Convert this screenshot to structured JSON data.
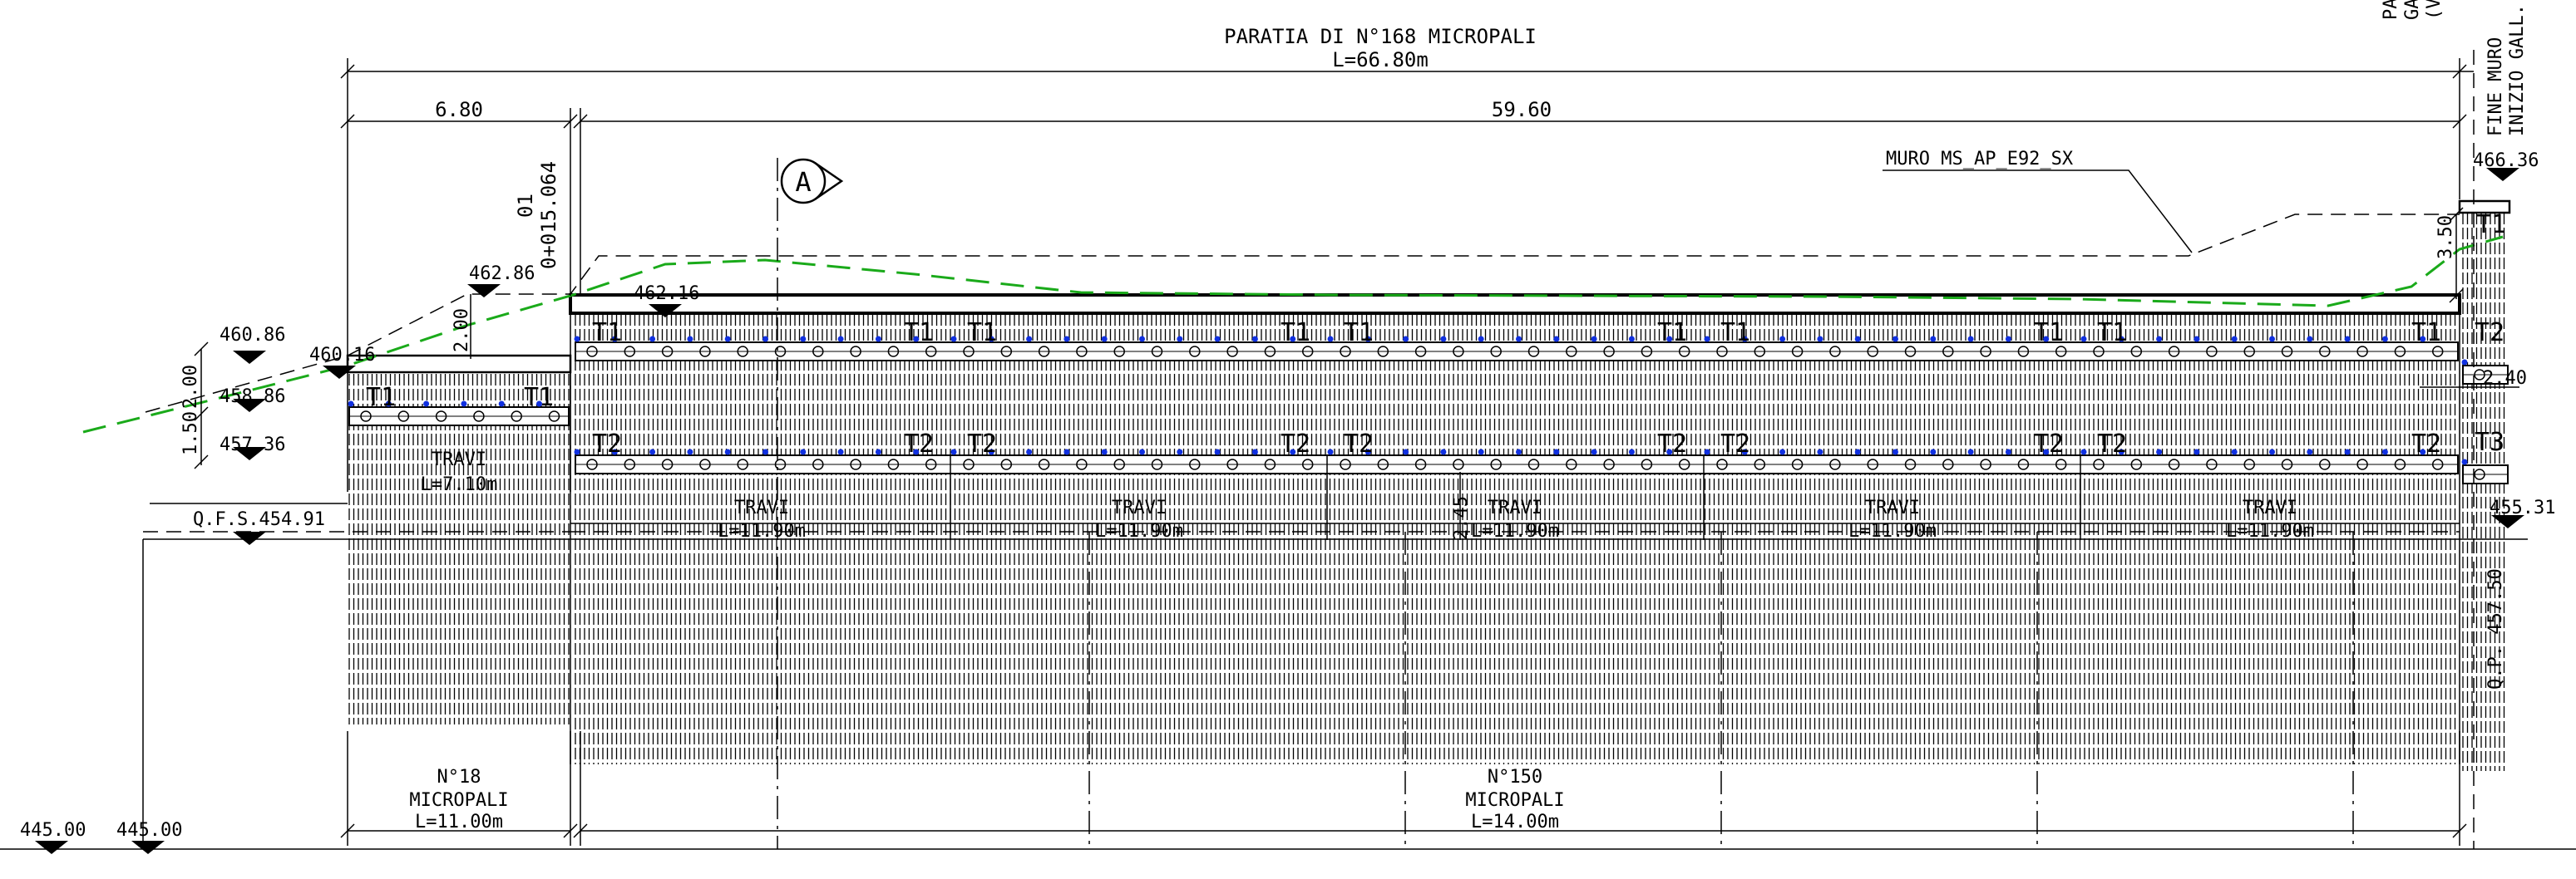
{
  "colors": {
    "ink": "#000000",
    "terrain_green": "#1aaa1a",
    "pile_blue": "#1030e0",
    "background": "#ffffff"
  },
  "title": {
    "line1": "PARATIA DI N°168 MICROPALI",
    "line2": "L=66.80m"
  },
  "right_labels": {
    "fine_muro": "FINE MURO",
    "inizio_gall": "INIZIO GALL.",
    "truncated_pa": "PA",
    "truncated_ga": "GA",
    "truncated_v": "(V"
  },
  "dimensions": {
    "left_span": "6.80",
    "main_span": "59.60",
    "h_2_00": "2.00",
    "h_1_50": "1.50",
    "h_2_00_left": "2.00",
    "h_3_50": "3.50",
    "h_2_40": "2.40",
    "h_2_45": "2.45"
  },
  "station": {
    "number": "01",
    "chainage": "0+015.064"
  },
  "section_marker": "A",
  "muro_label": "MURO MS_AP_E92_SX",
  "elevations": {
    "e_466_36": "466.36",
    "e_462_86": "462.86",
    "e_462_16": "462.16",
    "e_460_86": "460.86",
    "e_460_16": "460.16",
    "e_458_86": "458.86",
    "e_457_36": "457.36",
    "qfs": "Q.F.S.454.91",
    "e_455_31": "455.31",
    "qp": "Q.P. 457.50",
    "e_445_a": "445.00",
    "e_445_b": "445.00"
  },
  "beam_labels": {
    "t1": "T1",
    "t2": "T2",
    "t3": "T3"
  },
  "travi": {
    "left": {
      "name": "TRAVI",
      "length": "L=7.10m"
    },
    "bays": [
      {
        "name": "TRAVI",
        "length": "L=11.90m"
      },
      {
        "name": "TRAVI",
        "length": "L=11.90m"
      },
      {
        "name": "TRAVI",
        "length": "L=11.90m"
      },
      {
        "name": "TRAVI",
        "length": "L=11.90m"
      },
      {
        "name": "TRAVI",
        "length": "L=11.90m"
      }
    ]
  },
  "pile_groups": {
    "left": {
      "count": "N°18",
      "type": "MICROPALI",
      "length": "L=11.00m"
    },
    "main": {
      "count": "N°150",
      "type": "MICROPALI",
      "length": "L=14.00m"
    }
  }
}
